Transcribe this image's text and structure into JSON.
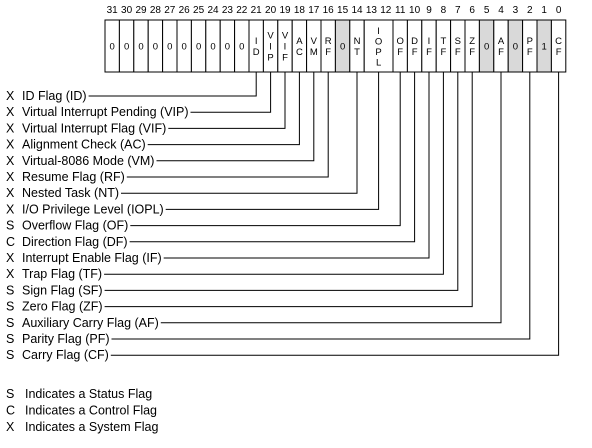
{
  "register": {
    "bit_numbers": [
      "31",
      "30",
      "29",
      "28",
      "27",
      "26",
      "25",
      "24",
      "23",
      "22",
      "21",
      "20",
      "19",
      "18",
      "17",
      "16",
      "15",
      "14",
      "13",
      "12",
      "11",
      "10",
      "9",
      "8",
      "7",
      "6",
      "5",
      "4",
      "3",
      "2",
      "1",
      "0"
    ],
    "cells": [
      {
        "bits": 31,
        "text": "0",
        "shaded": false
      },
      {
        "bits": 30,
        "text": "0",
        "shaded": false
      },
      {
        "bits": 29,
        "text": "0",
        "shaded": false
      },
      {
        "bits": 28,
        "text": "0",
        "shaded": false
      },
      {
        "bits": 27,
        "text": "0",
        "shaded": false
      },
      {
        "bits": 26,
        "text": "0",
        "shaded": false
      },
      {
        "bits": 25,
        "text": "0",
        "shaded": false
      },
      {
        "bits": 24,
        "text": "0",
        "shaded": false
      },
      {
        "bits": 23,
        "text": "0",
        "shaded": false
      },
      {
        "bits": 22,
        "text": "0",
        "shaded": false
      },
      {
        "bits": 21,
        "text": "ID",
        "shaded": false
      },
      {
        "bits": 20,
        "text": "VIP",
        "shaded": false
      },
      {
        "bits": 19,
        "text": "VIF",
        "shaded": false
      },
      {
        "bits": 18,
        "text": "AC",
        "shaded": false
      },
      {
        "bits": 17,
        "text": "VM",
        "shaded": false
      },
      {
        "bits": 16,
        "text": "RF",
        "shaded": false
      },
      {
        "bits": 15,
        "text": "0",
        "shaded": true
      },
      {
        "bits": 14,
        "text": "NT",
        "shaded": false
      },
      {
        "bits": "13-12",
        "text": "IOPL",
        "shaded": false
      },
      {
        "bits": 11,
        "text": "OF",
        "shaded": false
      },
      {
        "bits": 10,
        "text": "DF",
        "shaded": false
      },
      {
        "bits": 9,
        "text": "IF",
        "shaded": false
      },
      {
        "bits": 8,
        "text": "TF",
        "shaded": false
      },
      {
        "bits": 7,
        "text": "SF",
        "shaded": false
      },
      {
        "bits": 6,
        "text": "ZF",
        "shaded": false
      },
      {
        "bits": 5,
        "text": "0",
        "shaded": true
      },
      {
        "bits": 4,
        "text": "AF",
        "shaded": false
      },
      {
        "bits": 3,
        "text": "0",
        "shaded": true
      },
      {
        "bits": 2,
        "text": "PF",
        "shaded": false
      },
      {
        "bits": 1,
        "text": "1",
        "shaded": true
      },
      {
        "bits": 0,
        "text": "CF",
        "shaded": false
      }
    ]
  },
  "flags": [
    {
      "type": "X",
      "name": "ID Flag (ID)",
      "bit": 21
    },
    {
      "type": "X",
      "name": "Virtual Interrupt Pending (VIP)",
      "bit": 20
    },
    {
      "type": "X",
      "name": "Virtual Interrupt Flag (VIF)",
      "bit": 19
    },
    {
      "type": "X",
      "name": "Alignment Check (AC)",
      "bit": 18
    },
    {
      "type": "X",
      "name": "Virtual-8086 Mode (VM)",
      "bit": 17
    },
    {
      "type": "X",
      "name": "Resume Flag (RF)",
      "bit": 16
    },
    {
      "type": "X",
      "name": "Nested Task (NT)",
      "bit": 14
    },
    {
      "type": "X",
      "name": "I/O Privilege Level (IOPL)",
      "bit": 12.5
    },
    {
      "type": "S",
      "name": "Overflow Flag (OF)",
      "bit": 11
    },
    {
      "type": "C",
      "name": "Direction Flag (DF)",
      "bit": 10
    },
    {
      "type": "X",
      "name": "Interrupt Enable Flag (IF)",
      "bit": 9
    },
    {
      "type": "X",
      "name": "Trap Flag (TF)",
      "bit": 8
    },
    {
      "type": "S",
      "name": "Sign Flag (SF)",
      "bit": 7
    },
    {
      "type": "S",
      "name": "Zero Flag (ZF)",
      "bit": 6
    },
    {
      "type": "S",
      "name": "Auxiliary Carry Flag (AF)",
      "bit": 4
    },
    {
      "type": "S",
      "name": "Parity Flag (PF)",
      "bit": 2
    },
    {
      "type": "S",
      "name": "Carry Flag (CF)",
      "bit": 0
    }
  ],
  "legend": [
    {
      "code": "S",
      "text": "Indicates a Status Flag"
    },
    {
      "code": "C",
      "text": "Indicates a Control Flag"
    },
    {
      "code": "X",
      "text": "Indicates a System Flag"
    }
  ]
}
